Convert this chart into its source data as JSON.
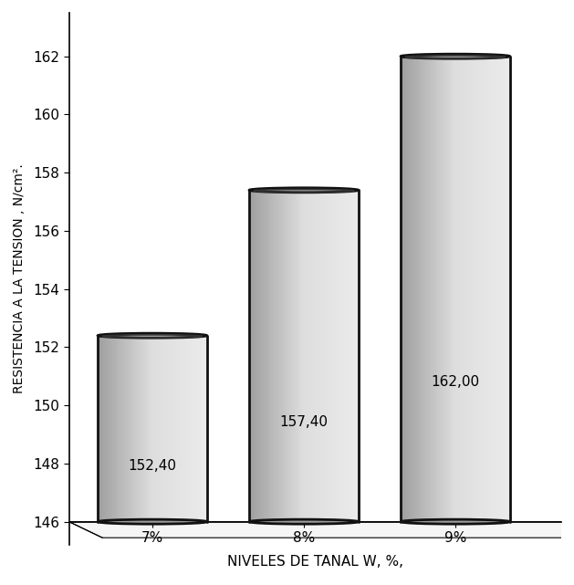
{
  "categories": [
    "7%",
    "8%",
    "9%"
  ],
  "values": [
    152.4,
    157.4,
    162.0
  ],
  "labels": [
    "152,40",
    "157,40",
    "162,00"
  ],
  "ylim": [
    146,
    163.5
  ],
  "yticks": [
    146,
    148,
    150,
    152,
    154,
    156,
    158,
    160,
    162
  ],
  "ylabel": "RESISTENCIA A LA TENSION , N/cm².",
  "xlabel": "NIVELES DE TANAL W, %,",
  "bar_width": 0.72,
  "ellipse_ratio": 0.22,
  "cylinder_color_left": "#aaaaaa",
  "cylinder_color_center": "#d8d8d8",
  "cylinder_color_right": "#e8e8e8",
  "cylinder_top_color": "#c0c0c0",
  "cylinder_top_dark": "#888888",
  "edge_color": "#111111",
  "background_color": "#ffffff",
  "text_fontsize": 11,
  "tick_fontsize": 11,
  "ylabel_fontsize": 10,
  "xlabel_fontsize": 11,
  "x_positions": [
    0,
    1,
    2
  ],
  "xlim": [
    -0.55,
    2.7
  ]
}
